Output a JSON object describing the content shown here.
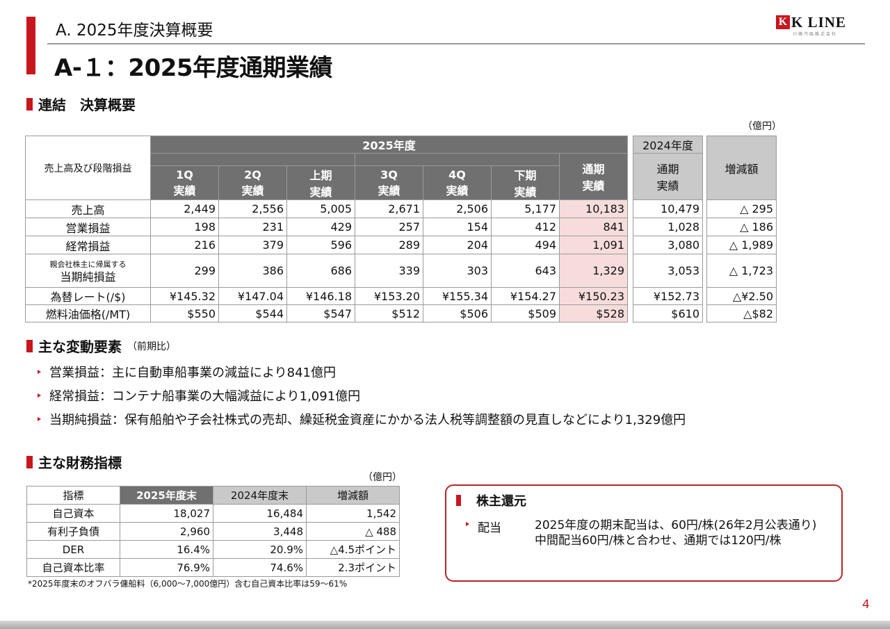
{
  "header": {
    "section_title": "A. 2025年度決算概要",
    "main_title": "A-１：2025年度通期業績",
    "logo": {
      "box": "K",
      "text": "K LINE",
      "small": "川崎汽船株式会社"
    }
  },
  "consolidated": {
    "heading": "連結　決算概要",
    "unit": "（億円）",
    "table": {
      "row_header": "売上高及び段階損益",
      "year_group": "2025年度",
      "prev_year_group": "2024年度",
      "columns": [
        {
          "line1": "1Q",
          "line2": "実績"
        },
        {
          "line1": "2Q",
          "line2": "実績"
        },
        {
          "line1": "上期",
          "line2": "実績"
        },
        {
          "line1": "3Q",
          "line2": "実績"
        },
        {
          "line1": "4Q",
          "line2": "実績"
        },
        {
          "line1": "下期",
          "line2": "実績"
        },
        {
          "line1": "通期",
          "line2": "実績"
        }
      ],
      "prev_col": {
        "line1": "通期",
        "line2": "実績"
      },
      "diff_col": "増減額",
      "rows": [
        {
          "label": "売上高",
          "values": [
            "2,449",
            "2,556",
            "5,005",
            "2,671",
            "2,506",
            "5,177",
            "10,183"
          ],
          "prev": "10,479",
          "diff": "△ 295"
        },
        {
          "label": "営業損益",
          "values": [
            "198",
            "231",
            "429",
            "257",
            "154",
            "412",
            "841"
          ],
          "prev": "1,028",
          "diff": "△ 186"
        },
        {
          "label": "経常損益",
          "values": [
            "216",
            "379",
            "596",
            "289",
            "204",
            "494",
            "1,091"
          ],
          "prev": "3,080",
          "diff": "△ 1,989"
        },
        {
          "label_small": "親会社株主に帰属する",
          "label": "当期純損益",
          "values": [
            "299",
            "386",
            "686",
            "339",
            "303",
            "643",
            "1,329"
          ],
          "prev": "3,053",
          "diff": "△ 1,723"
        },
        {
          "label": "為替レート(/$)",
          "values": [
            "¥145.32",
            "¥147.04",
            "¥146.18",
            "¥153.20",
            "¥155.34",
            "¥154.27",
            "¥150.23"
          ],
          "prev": "¥152.73",
          "diff": "△¥2.50"
        },
        {
          "label": "燃料油価格(/MT)",
          "values": [
            "$550",
            "$544",
            "$547",
            "$512",
            "$506",
            "$509",
            "$528"
          ],
          "prev": "$610",
          "diff": "△$82"
        }
      ]
    }
  },
  "factors": {
    "heading": "主な変動要素",
    "note": "（前期比）",
    "items": [
      "営業損益：主に自動車船事業の減益により841億円",
      "経常損益：コンテナ船事業の大幅減益により1,091億円",
      "当期純損益：保有船舶や子会社株式の売却、繰延税金資産にかかる法人税等調整額の見直しなどにより1,329億円"
    ]
  },
  "financial": {
    "heading": "主な財務指標",
    "unit": "（億円）",
    "headers": [
      "指標",
      "2025年度末",
      "2024年度末",
      "増減額"
    ],
    "rows": [
      [
        "自己資本",
        "18,027",
        "16,484",
        "1,542"
      ],
      [
        "有利子負債",
        "2,960",
        "3,448",
        "△ 488"
      ],
      [
        "DER",
        "16.4%",
        "20.9%",
        "△4.5ポイント"
      ],
      [
        "自己資本比率",
        "76.9%",
        "74.6%",
        "2.3ポイント"
      ]
    ],
    "footnote": "*2025年度末のオフバラ傭船料（6,000～7,000億円）含む自己資本比率は59～61%"
  },
  "returns": {
    "heading": "株主還元",
    "label": "配当",
    "lines": [
      "2025年度の期末配当は、60円/株(26年2月公表通り)",
      "中間配当60円/株と合わせ、通期では120円/株"
    ]
  },
  "page_number": "4",
  "colors": {
    "accent": "#c8161d",
    "header_dark": "#707070",
    "header_gray": "#c9c9c9",
    "highlight": "#f7dcdc"
  }
}
